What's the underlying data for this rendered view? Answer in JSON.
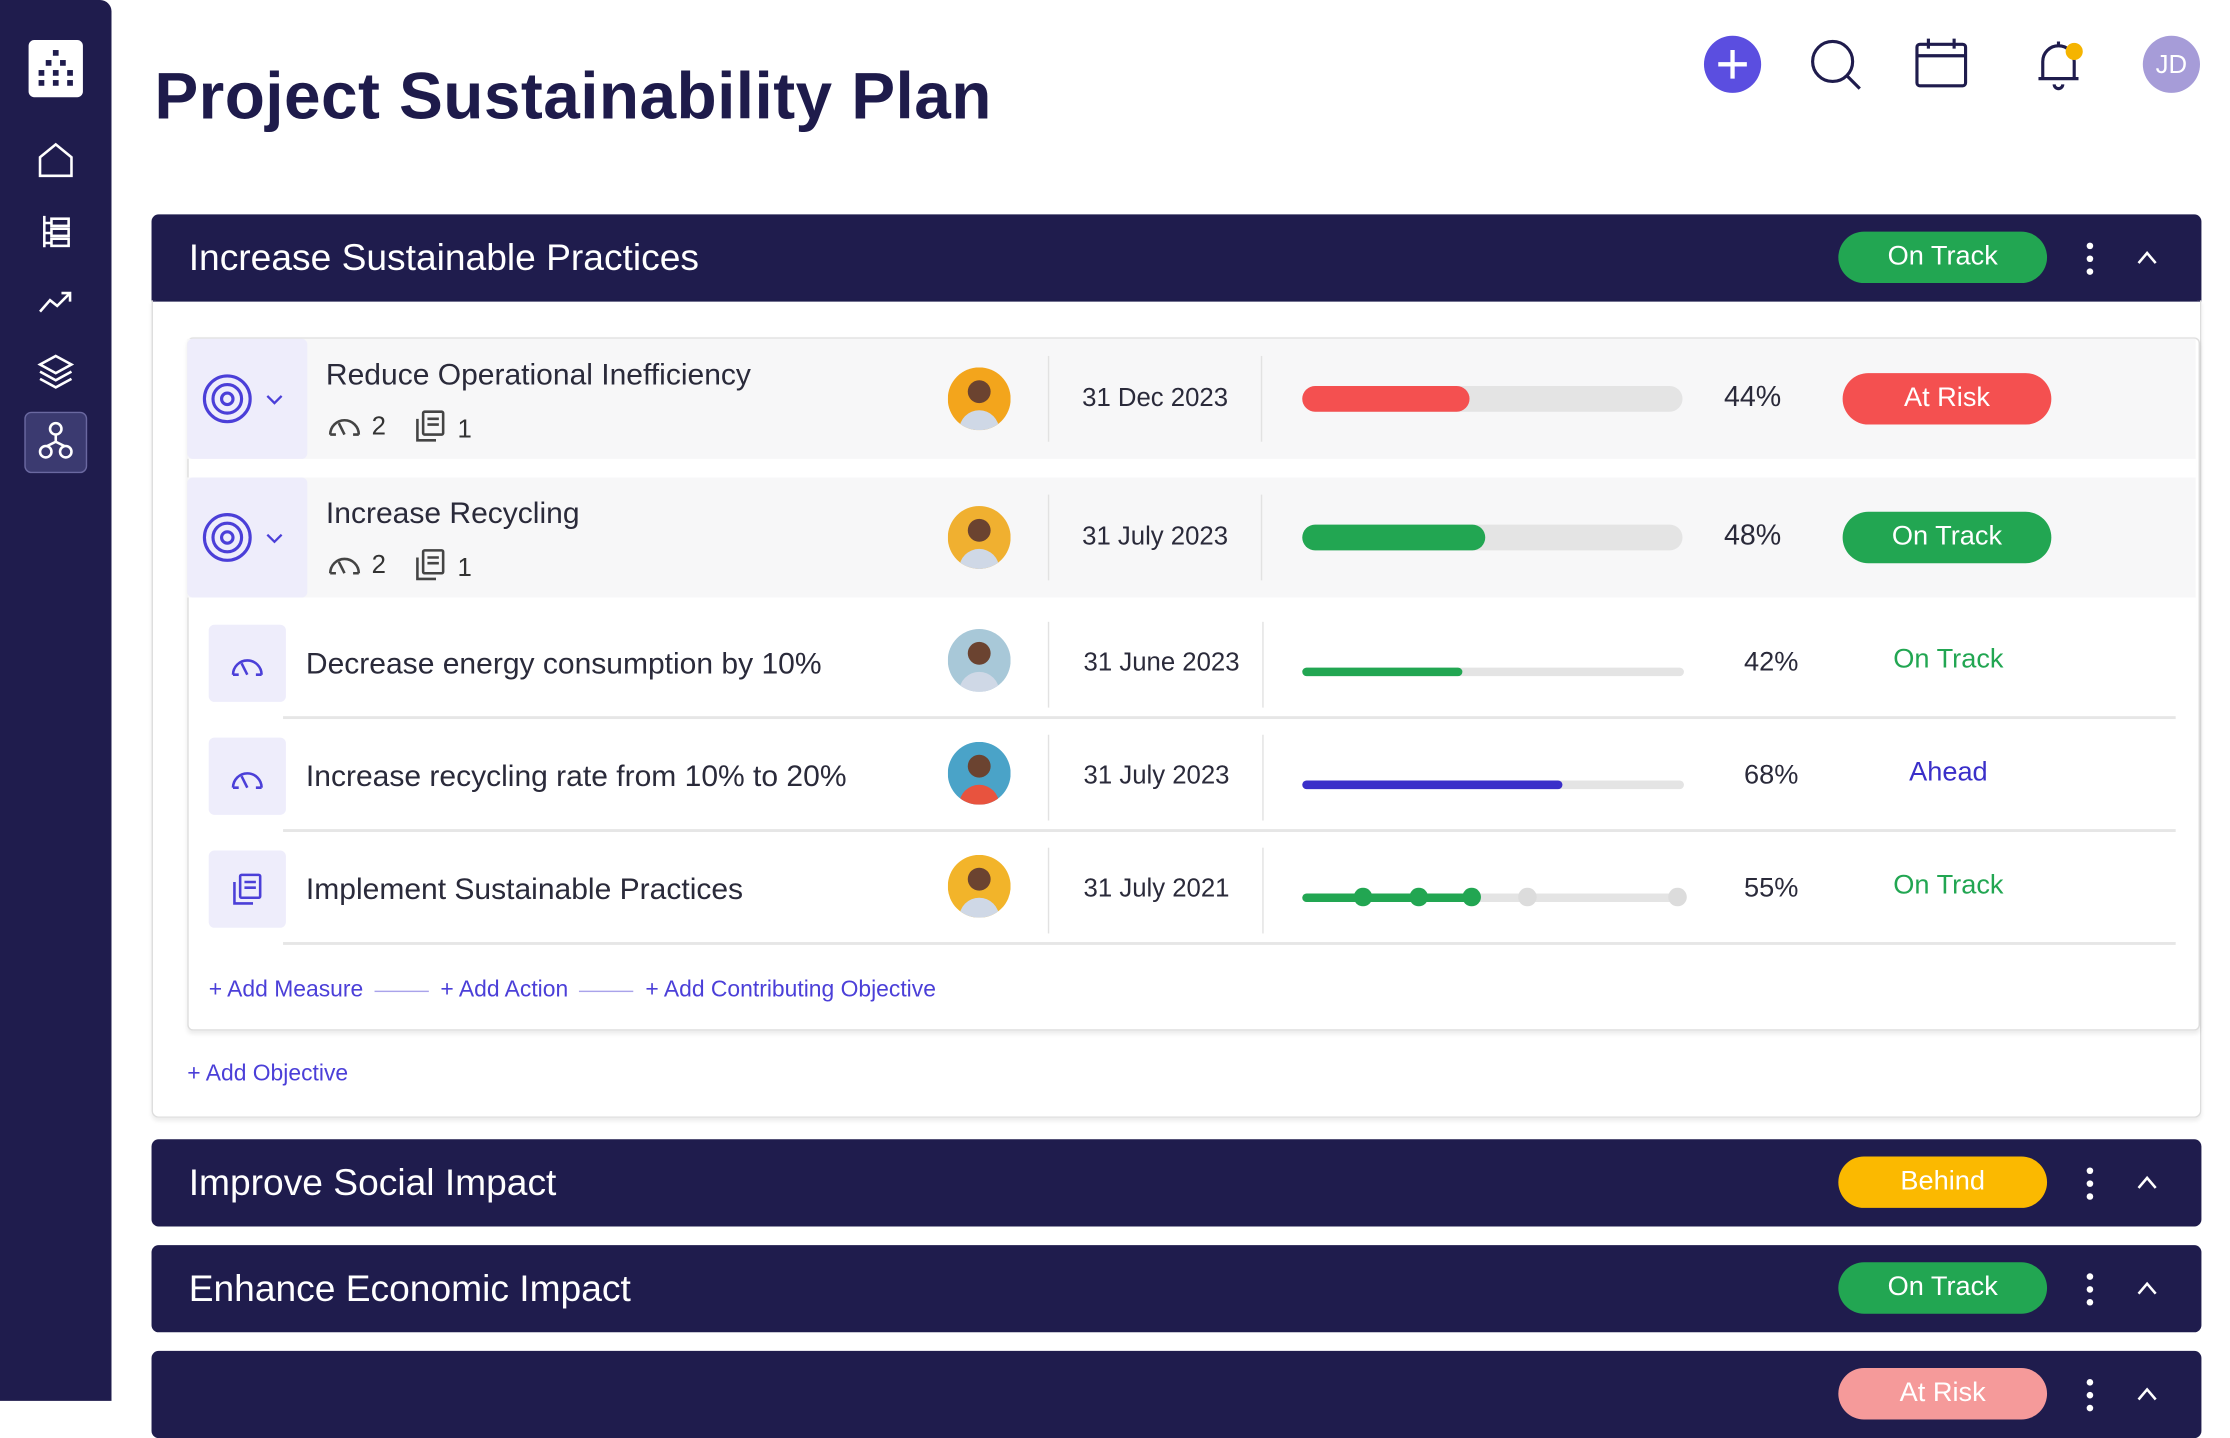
{
  "page": {
    "title": "Project Sustainability Plan"
  },
  "sidebar": {
    "items": [
      {
        "icon": "home-icon"
      },
      {
        "icon": "list-tree-icon"
      },
      {
        "icon": "trend-icon"
      },
      {
        "icon": "layers-icon"
      },
      {
        "icon": "hierarchy-icon",
        "active": true
      }
    ]
  },
  "topbar": {
    "avatar_initials": "JD",
    "notification_dot_color": "#f5b400",
    "add_color": "#5b4ee0"
  },
  "colors": {
    "navy": "#1f1c4d",
    "green": "#22a652",
    "red": "#f45050",
    "yellow": "#fbb900",
    "pink": "#f59a9a",
    "blue": "#3a2fc9"
  },
  "sections": [
    {
      "title": "Increase Sustainable Practices",
      "status": "On Track",
      "status_color": "#22a652",
      "expanded": true,
      "objectives": [
        {
          "title": "Reduce Operational Inefficiency",
          "measures": "2",
          "actions": "1",
          "date": "31 Dec 2023",
          "progress": 44,
          "progress_label": "44%",
          "status": "At Risk",
          "color": "#f45050"
        },
        {
          "title": "Increase Recycling",
          "measures": "2",
          "actions": "1",
          "date": "31 July 2023",
          "progress": 48,
          "progress_label": "48%",
          "status": "On Track",
          "color": "#22a652"
        }
      ],
      "items": [
        {
          "type": "measure",
          "title": "Decrease energy consumption by 10%",
          "date": "31 June 2023",
          "progress": 42,
          "progress_label": "42%",
          "status": "On Track",
          "color": "#22a652"
        },
        {
          "type": "measure",
          "title": "Increase recycling rate from 10% to 20%",
          "date": "31 July 2023",
          "progress": 68,
          "progress_label": "68%",
          "status": "Ahead",
          "color": "#3a2fc9"
        },
        {
          "type": "action",
          "title": "Implement Sustainable Practices",
          "date": "31 July 2021",
          "progress": 55,
          "progress_label": "55%",
          "status": "On Track",
          "color": "#22a652",
          "milestones_total": 5,
          "milestones_done": 3
        }
      ],
      "links": [
        "+ Add Measure",
        "+ Add Action",
        "+ Add Contributing Objective"
      ],
      "add_objective": "+ Add Objective"
    },
    {
      "title": "Improve Social Impact",
      "status": "Behind",
      "status_color": "#fbb900"
    },
    {
      "title": "Enhance Economic Impact",
      "status": "On Track",
      "status_color": "#22a652"
    },
    {
      "title": "",
      "status": "At Risk",
      "status_color": "#f59a9a"
    }
  ]
}
